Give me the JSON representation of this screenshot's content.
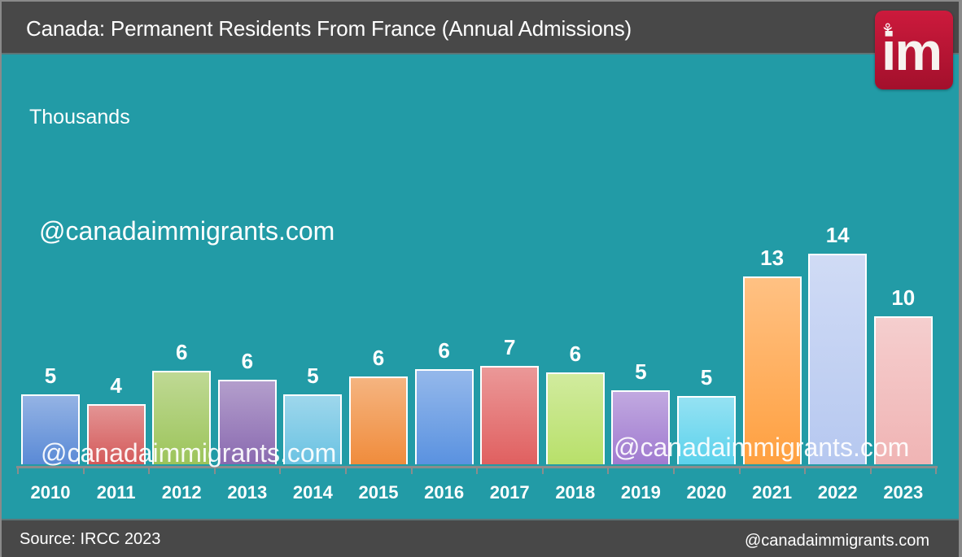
{
  "header": {
    "title": "Canada: Permanent Residents From France (Annual Admissions)"
  },
  "logo": {
    "text": "im",
    "icon": "maple-leaf-icon",
    "color": "#c0163a"
  },
  "units_label": "Thousands",
  "watermark": "@canadaimmigrants.com",
  "footer": {
    "source": "Source: IRCC 2023",
    "site": "@canadaimmigrants.com"
  },
  "colors": {
    "background": "#229ba6",
    "header": "#484848"
  },
  "chart_data": {
    "type": "bar",
    "title": "Canada: Permanent Residents From France (Annual Admissions)",
    "xlabel": "",
    "ylabel": "Thousands",
    "categories": [
      "2010",
      "2011",
      "2012",
      "2013",
      "2014",
      "2015",
      "2016",
      "2017",
      "2018",
      "2019",
      "2020",
      "2021",
      "2022",
      "2023"
    ],
    "values": [
      5,
      4,
      6,
      6,
      5,
      6,
      6,
      7,
      6,
      5,
      5,
      13,
      14,
      10
    ],
    "bar_heights_est": [
      4.6,
      4.0,
      6.2,
      5.6,
      4.6,
      5.8,
      6.3,
      6.5,
      6.1,
      4.9,
      4.5,
      12.4,
      13.9,
      9.8
    ],
    "bar_colors": [
      "#5a8ad6",
      "#d45a5a",
      "#9cc45a",
      "#8a6ab0",
      "#6ac2e2",
      "#f08c3c",
      "#5a92e0",
      "#e06060",
      "#b8e06a",
      "#a07ad0",
      "#5cd2ec",
      "#ffa040",
      "#b6c8f0",
      "#f0b4b4"
    ],
    "ylim": [
      0,
      15
    ],
    "grid": false,
    "legend": "none",
    "data_labels": true
  }
}
